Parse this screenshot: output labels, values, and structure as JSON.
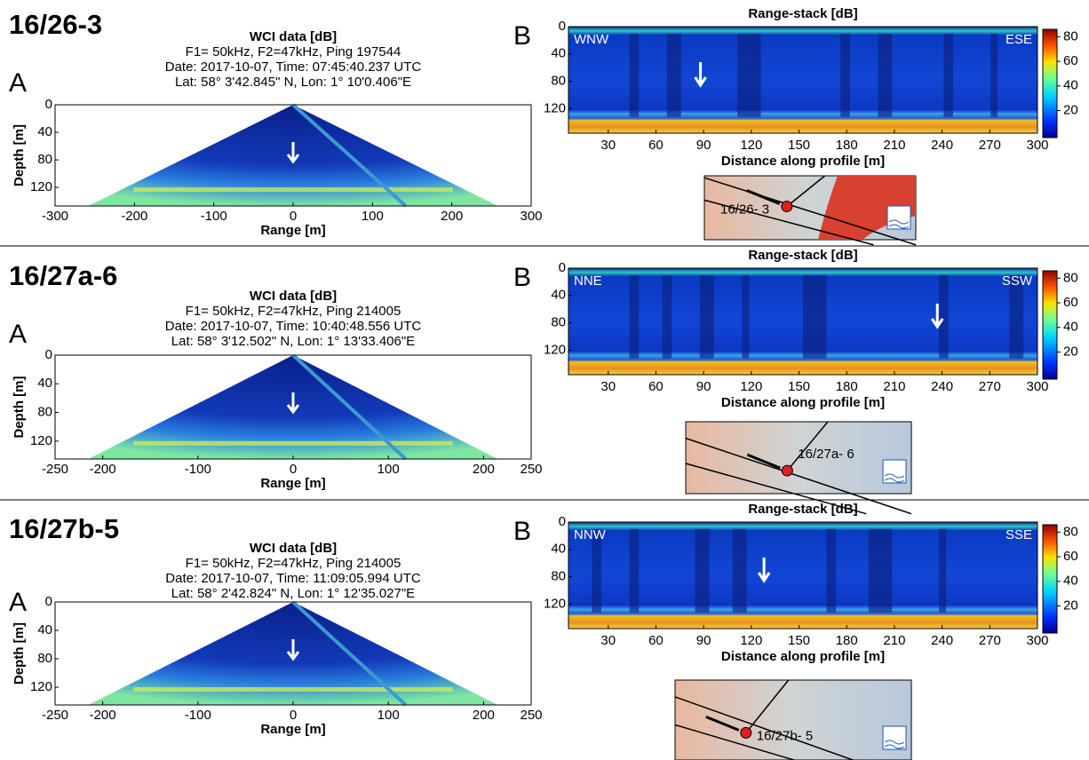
{
  "panels": [
    {
      "id": "16/26-3",
      "wci": {
        "label": "A",
        "title": "WCI data [dB]",
        "lines": [
          "F1= 50kHz, F2=47kHz, Ping 197544",
          "Date: 2017-10-07, Time: 07:45:40.237 UTC",
          "Lat: 58° 3'42.845\" N, Lon: 1° 10'0.406\"E"
        ],
        "xlabel": "Range [m]",
        "ylabel": "Depth [m]",
        "xlim": [
          -300,
          300
        ],
        "xticks": [
          -300,
          -200,
          -100,
          0,
          100,
          200,
          300
        ],
        "ylim": [
          0,
          147
        ],
        "yticks": [
          0,
          40,
          80,
          120
        ]
      },
      "stack": {
        "label": "B",
        "title": "Range-stack [dB]",
        "left": "WNW",
        "right": "ESE",
        "xlabel": "Distance along profile [m]",
        "xlim": [
          5,
          300
        ],
        "xticks": [
          30,
          60,
          90,
          120,
          150,
          180,
          210,
          240,
          270,
          300
        ],
        "ylim": [
          0,
          156
        ],
        "yticks": [
          0,
          40,
          80,
          120
        ],
        "clim": [
          -2,
          86
        ],
        "cticks": [
          20,
          40,
          60,
          80
        ]
      },
      "map": {
        "label": "16/26- 3"
      }
    },
    {
      "id": "16/27a-6",
      "wci": {
        "label": "A",
        "title": "WCI data [dB]",
        "lines": [
          "F1= 50kHz, F2=47kHz, Ping 214005",
          "Date: 2017-10-07, Time: 10:40:48.556 UTC",
          "Lat: 58° 3'12.502\" N, Lon: 1° 13'33.406\"E"
        ],
        "xlabel": "Range [m]",
        "ylabel": "Depth [m]",
        "xlim": [
          -250,
          250
        ],
        "xticks": [
          -250,
          -200,
          -100,
          0,
          100,
          200,
          250
        ],
        "ylim": [
          0,
          145
        ],
        "yticks": [
          0,
          40,
          80,
          120
        ]
      },
      "stack": {
        "label": "B",
        "title": "Range-stack [dB]",
        "left": "NNE",
        "right": "SSW",
        "xlabel": "Distance along profile [m]",
        "xlim": [
          5,
          300
        ],
        "xticks": [
          30,
          60,
          90,
          120,
          150,
          180,
          210,
          240,
          270,
          300
        ],
        "ylim": [
          0,
          156
        ],
        "yticks": [
          0,
          40,
          80,
          120
        ],
        "clim": [
          -2,
          86
        ],
        "cticks": [
          20,
          40,
          60,
          80
        ]
      },
      "map": {
        "label": "16/27a- 6"
      }
    },
    {
      "id": "16/27b-5",
      "wci": {
        "label": "A",
        "title": "WCI data [dB]",
        "lines": [
          "F1= 50kHz, F2=47kHz, Ping 214005",
          "Date: 2017-10-07, Time: 11:09:05.994 UTC",
          "Lat: 58° 2'42.824\" N, Lon: 1° 12'35.027\"E"
        ],
        "xlabel": "Range [m]",
        "ylabel": "Depth [m]",
        "xlim": [
          -250,
          250
        ],
        "xticks": [
          -250,
          -200,
          -100,
          0,
          100,
          200,
          250
        ],
        "ylim": [
          0,
          145
        ],
        "yticks": [
          0,
          40,
          80,
          120
        ]
      },
      "stack": {
        "label": "B",
        "title": "Range-stack [dB]",
        "left": "NNW",
        "right": "SSE",
        "xlabel": "Distance along profile [m]",
        "xlim": [
          5,
          300
        ],
        "xticks": [
          30,
          60,
          90,
          120,
          150,
          180,
          210,
          240,
          270,
          300
        ],
        "ylim": [
          0,
          156
        ],
        "yticks": [
          0,
          40,
          80,
          120
        ],
        "clim": [
          -2,
          86
        ],
        "cticks": [
          20,
          40,
          60,
          80
        ]
      },
      "map": {
        "label": "16/27b- 5"
      }
    }
  ]
}
